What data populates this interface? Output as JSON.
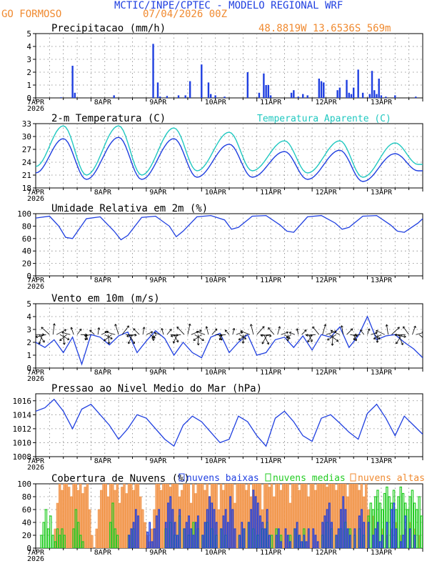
{
  "header": {
    "title": "MCTIC/INPE/CPTEC - MODELO REGIONAL WRF",
    "location": "GO FORMOSO",
    "run": "07/04/2026 00Z",
    "coords": "48.8819W 13.6536S 569m"
  },
  "colors": {
    "blue": "#1f3fe0",
    "cyan": "#20c8c0",
    "orange": "#f08a30",
    "green": "#22cc22",
    "cloud_orange_fill": "#f4a66a",
    "grid": "#808080"
  },
  "x_axis": {
    "tick_labels": [
      "7APR",
      "8APR",
      "9APR",
      "10APR",
      "11APR",
      "12APR",
      "13APR"
    ],
    "year_label": "2026",
    "hours_total": 168
  },
  "chart_data": [
    {
      "id": "precip",
      "type": "bar",
      "title": "Precipitacao (mm/h)",
      "ylim": [
        0,
        5
      ],
      "yticks": [
        "0",
        "1",
        "2",
        "3",
        "4",
        "5"
      ],
      "x": [
        11,
        16,
        17,
        34,
        51,
        53,
        54,
        57,
        62,
        65,
        67,
        72,
        75,
        76,
        78,
        82,
        92,
        97,
        99,
        100,
        101,
        102,
        111,
        112,
        114,
        116,
        118,
        123,
        124,
        125,
        131,
        132,
        135,
        136,
        137,
        138,
        140,
        142,
        145,
        146,
        147,
        148,
        149,
        150,
        152,
        156,
        165
      ],
      "values": [
        0.05,
        2.5,
        0.4,
        0.2,
        4.2,
        1.2,
        0.1,
        0.15,
        0.2,
        0.2,
        1.3,
        2.6,
        1.2,
        0.3,
        0.2,
        0.1,
        2.0,
        0.4,
        1.9,
        1.0,
        1.0,
        0.2,
        0.4,
        0.6,
        0.1,
        0.3,
        0.2,
        1.5,
        1.3,
        1.2,
        0.6,
        0.8,
        1.4,
        0.4,
        0.3,
        0.8,
        2.2,
        0.4,
        0.3,
        2.1,
        0.6,
        0.3,
        1.5,
        0.2,
        0.1,
        0.2,
        0.1
      ]
    },
    {
      "id": "temperature",
      "type": "line",
      "title": "2-m Temperatura (C)",
      "legend": "Temperatura Aparente (C)",
      "ylim": [
        18,
        33
      ],
      "yticks": [
        "18",
        "21",
        "24",
        "27",
        "30",
        "33"
      ],
      "min_hours": [
        0,
        22,
        46,
        70,
        94,
        118,
        142,
        166
      ],
      "temp_min": [
        21.5,
        20.0,
        20.0,
        20.5,
        20.5,
        20.0,
        19.5,
        22.0
      ],
      "temp_max_hours": [
        12,
        36,
        60,
        84,
        108,
        132,
        156
      ],
      "temp_max": [
        29.5,
        29.8,
        29.5,
        28.2,
        26.5,
        26.8,
        26.0
      ],
      "apparent_min": [
        23.0,
        21.0,
        21.0,
        22.0,
        22.0,
        21.5,
        20.5,
        23.5
      ],
      "apparent_max": [
        32.5,
        32.5,
        32.0,
        31.0,
        29.0,
        29.0,
        28.5
      ]
    },
    {
      "id": "humidity",
      "type": "line",
      "title": "Umidade Relativa em 2m (%)",
      "ylim": [
        0,
        100
      ],
      "yticks": [
        "0",
        "20",
        "40",
        "60",
        "80",
        "100"
      ],
      "x": [
        0,
        6,
        10,
        13,
        16,
        22,
        28,
        34,
        37,
        40,
        46,
        52,
        58,
        61,
        64,
        70,
        76,
        82,
        85,
        88,
        94,
        100,
        106,
        109,
        112,
        118,
        124,
        130,
        133,
        136,
        142,
        148,
        154,
        157,
        160,
        166,
        168
      ],
      "values": [
        93,
        96,
        80,
        62,
        60,
        92,
        95,
        72,
        58,
        65,
        94,
        96,
        80,
        63,
        72,
        95,
        97,
        90,
        75,
        78,
        96,
        97,
        82,
        72,
        70,
        95,
        97,
        85,
        75,
        78,
        96,
        97,
        82,
        72,
        70,
        85,
        92
      ]
    },
    {
      "id": "wind",
      "type": "line",
      "title": "Vento em 10m (m/s)",
      "ylim": [
        0,
        5
      ],
      "yticks": [
        "0",
        "1",
        "2",
        "3",
        "4",
        "5"
      ],
      "x": [
        0,
        4,
        8,
        12,
        16,
        20,
        24,
        28,
        32,
        36,
        40,
        44,
        48,
        52,
        56,
        60,
        64,
        68,
        72,
        76,
        80,
        84,
        88,
        92,
        96,
        100,
        104,
        108,
        112,
        116,
        120,
        124,
        128,
        132,
        136,
        140,
        144,
        148,
        152,
        156,
        160,
        164,
        168
      ],
      "values": [
        2.0,
        1.6,
        2.2,
        1.2,
        2.4,
        0.3,
        2.6,
        2.4,
        1.8,
        2.5,
        2.8,
        1.2,
        2.1,
        2.9,
        2.3,
        1.0,
        2.0,
        1.2,
        0.8,
        2.4,
        2.7,
        1.2,
        2.0,
        2.6,
        1.0,
        1.2,
        2.2,
        2.4,
        1.6,
        2.5,
        1.4,
        2.6,
        2.4,
        3.2,
        1.6,
        2.5,
        4.0,
        2.2,
        2.5,
        2.6,
        2.0,
        1.5,
        0.8
      ]
    },
    {
      "id": "pressure",
      "type": "line",
      "title": "Pressao ao Nivel Medio do Mar (hPa)",
      "ylim": [
        1008,
        1017
      ],
      "yticks": [
        "1008",
        "1010",
        "1012",
        "1014",
        "1016"
      ],
      "x": [
        0,
        4,
        8,
        12,
        16,
        20,
        24,
        28,
        32,
        36,
        40,
        44,
        48,
        52,
        56,
        60,
        64,
        68,
        72,
        76,
        80,
        84,
        88,
        92,
        96,
        100,
        104,
        108,
        112,
        116,
        120,
        124,
        128,
        132,
        136,
        140,
        144,
        148,
        152,
        156,
        160,
        164,
        168
      ],
      "values": [
        1014.5,
        1015.0,
        1016.2,
        1014.5,
        1012.0,
        1014.8,
        1015.5,
        1014.0,
        1012.5,
        1010.5,
        1012.0,
        1014.0,
        1013.5,
        1012.0,
        1010.5,
        1009.5,
        1012.5,
        1013.8,
        1013.0,
        1011.5,
        1010.0,
        1010.5,
        1013.8,
        1013.0,
        1011.0,
        1009.5,
        1013.5,
        1014.5,
        1013.0,
        1011.0,
        1010.2,
        1013.5,
        1014.0,
        1012.8,
        1011.5,
        1010.5,
        1014.2,
        1015.5,
        1013.5,
        1011.0,
        1013.8,
        1012.5,
        1011.2
      ]
    },
    {
      "id": "clouds",
      "type": "bar",
      "title": "Cobertura de Nuvens (%)",
      "legend": [
        "nuvens baixas",
        "nuvens medias",
        "nuvens altas"
      ],
      "ylim": [
        0,
        100
      ],
      "yticks": [
        "0",
        "20",
        "40",
        "60",
        "80",
        "100"
      ],
      "low_x": [
        40,
        41,
        42,
        43,
        44,
        48,
        49,
        50,
        51,
        52,
        53,
        56,
        57,
        58,
        59,
        60,
        61,
        62,
        64,
        65,
        66,
        67,
        68,
        69,
        70,
        72,
        73,
        74,
        75,
        76,
        77,
        78,
        80,
        81,
        82,
        83,
        84,
        85,
        86,
        88,
        89,
        90,
        92,
        93,
        94,
        95,
        96,
        97,
        98,
        99,
        100,
        101,
        104,
        105,
        106,
        108,
        109,
        110,
        112,
        113,
        114,
        115,
        116,
        117,
        118,
        120,
        121,
        122,
        124,
        125,
        126,
        127,
        128,
        130,
        131,
        132,
        133,
        134,
        135,
        136,
        138,
        140,
        141,
        142,
        144,
        146,
        147,
        148,
        149,
        150,
        152,
        154,
        155,
        156,
        158,
        159,
        160,
        162,
        164
      ],
      "low_values": [
        20,
        30,
        40,
        60,
        50,
        25,
        40,
        10,
        30,
        50,
        60,
        40,
        70,
        80,
        60,
        40,
        20,
        60,
        30,
        40,
        50,
        30,
        20,
        40,
        50,
        20,
        40,
        60,
        80,
        70,
        60,
        40,
        30,
        50,
        60,
        40,
        80,
        60,
        30,
        20,
        40,
        30,
        40,
        60,
        90,
        80,
        70,
        50,
        40,
        30,
        60,
        20,
        20,
        30,
        10,
        30,
        20,
        10,
        30,
        40,
        20,
        10,
        20,
        10,
        30,
        30,
        20,
        10,
        40,
        50,
        60,
        70,
        40,
        20,
        30,
        60,
        80,
        60,
        30,
        20,
        30,
        50,
        60,
        40,
        40,
        20,
        30,
        40,
        10,
        20,
        40,
        60,
        70,
        30,
        10,
        20,
        50,
        30,
        20
      ],
      "mid_x": [
        2,
        3,
        4,
        5,
        6,
        7,
        8,
        9,
        10,
        11,
        12,
        16,
        17,
        18,
        19,
        20,
        32,
        33,
        34,
        35,
        40,
        42,
        56,
        58,
        60,
        62,
        64,
        66,
        68,
        70,
        72,
        74,
        76,
        78,
        80,
        82,
        88,
        90,
        92,
        94,
        96,
        98,
        100,
        102,
        104,
        106,
        110,
        112,
        114,
        116,
        124,
        126,
        128,
        130,
        132,
        134,
        136,
        138,
        140,
        142,
        144,
        145,
        146,
        147,
        148,
        149,
        150,
        151,
        152,
        153,
        154,
        155,
        156,
        157,
        158,
        159,
        160,
        161,
        162,
        163,
        164,
        165,
        166,
        167
      ],
      "mid_values": [
        20,
        40,
        60,
        30,
        50,
        20,
        10,
        30,
        20,
        30,
        20,
        30,
        60,
        40,
        20,
        10,
        40,
        70,
        30,
        20,
        20,
        30,
        30,
        40,
        20,
        50,
        30,
        20,
        40,
        30,
        20,
        40,
        30,
        20,
        30,
        20,
        20,
        30,
        40,
        30,
        20,
        30,
        40,
        20,
        30,
        20,
        20,
        30,
        20,
        30,
        20,
        40,
        30,
        20,
        30,
        40,
        30,
        20,
        30,
        20,
        50,
        70,
        60,
        80,
        90,
        70,
        60,
        85,
        95,
        80,
        70,
        90,
        60,
        80,
        95,
        85,
        70,
        60,
        80,
        90,
        70,
        60,
        80,
        50
      ],
      "high_x": [
        8,
        9,
        10,
        11,
        12,
        13,
        14,
        15,
        16,
        17,
        18,
        19,
        20,
        21,
        22,
        23,
        24,
        26,
        27,
        28,
        29,
        30,
        31,
        32,
        33,
        34,
        35,
        36,
        37,
        38,
        39,
        40,
        41,
        42,
        43,
        44,
        45,
        46,
        47,
        48,
        49,
        50,
        51,
        52,
        53,
        54,
        55,
        56,
        57,
        58,
        59,
        60,
        61,
        62,
        63,
        64,
        65,
        66,
        67,
        68,
        69,
        70,
        71,
        72,
        73,
        74,
        75,
        76,
        77,
        78,
        79,
        80,
        81,
        82,
        83,
        84,
        85,
        86,
        87,
        88,
        89,
        90,
        91,
        92,
        93,
        94,
        95,
        96,
        97,
        98,
        99,
        100,
        101,
        102,
        103,
        104,
        105,
        106,
        107,
        108,
        109,
        110,
        111,
        112,
        113,
        114,
        115,
        116,
        117,
        118,
        119,
        120,
        121,
        122,
        123,
        124,
        125,
        126,
        127,
        128,
        129,
        130,
        131,
        132,
        133,
        134,
        135,
        136,
        137,
        138,
        139,
        140,
        141,
        142,
        143,
        144,
        146,
        148,
        150,
        152,
        154,
        156,
        158,
        160,
        162,
        164,
        166
      ],
      "high_values": [
        30,
        70,
        100,
        90,
        100,
        100,
        95,
        80,
        100,
        100,
        90,
        100,
        85,
        95,
        100,
        60,
        20,
        30,
        60,
        90,
        100,
        100,
        80,
        100,
        100,
        90,
        100,
        70,
        95,
        100,
        85,
        100,
        100,
        90,
        100,
        100,
        80,
        60,
        40,
        20,
        10,
        30,
        60,
        100,
        100,
        90,
        100,
        100,
        100,
        95,
        100,
        100,
        100,
        80,
        90,
        100,
        100,
        100,
        70,
        100,
        85,
        100,
        100,
        100,
        90,
        100,
        80,
        100,
        100,
        100,
        60,
        100,
        90,
        100,
        100,
        100,
        100,
        70,
        100,
        100,
        100,
        100,
        90,
        100,
        80,
        100,
        100,
        100,
        100,
        60,
        100,
        100,
        95,
        100,
        80,
        100,
        100,
        90,
        100,
        100,
        100,
        70,
        100,
        100,
        100,
        90,
        100,
        100,
        100,
        80,
        100,
        100,
        90,
        100,
        100,
        100,
        100,
        95,
        100,
        100,
        100,
        90,
        100,
        100,
        100,
        100,
        80,
        100,
        100,
        100,
        100,
        90,
        100,
        80,
        100,
        60,
        50,
        40,
        30,
        20,
        30,
        40,
        20,
        30,
        40,
        30,
        20
      ]
    }
  ]
}
